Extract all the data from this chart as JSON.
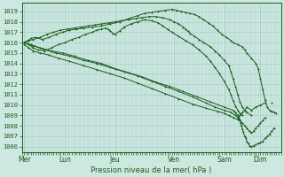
{
  "title": "Pression niveau de la mer( hPa )",
  "bg_color": "#cce8e0",
  "grid_color": "#aacfc8",
  "line_color": "#1a5c1a",
  "ylim": [
    1005.5,
    1019.8
  ],
  "yticks": [
    1006,
    1007,
    1008,
    1009,
    1010,
    1011,
    1012,
    1013,
    1014,
    1015,
    1016,
    1017,
    1018,
    1019
  ],
  "day_labels": [
    "Mer",
    "Lun",
    "Jeu",
    "Ven",
    "Sam",
    "Dim"
  ],
  "day_positions": [
    0.0,
    0.9,
    2.0,
    3.3,
    4.4,
    5.2
  ],
  "xlim": [
    -0.05,
    5.65
  ],
  "lines": [
    {
      "x": [
        0.0,
        0.08,
        0.15,
        0.25,
        0.4,
        0.55,
        0.7,
        0.85,
        1.0,
        1.15,
        1.3,
        1.5,
        1.7,
        1.9,
        2.1,
        2.3,
        2.5,
        2.65,
        2.8,
        2.95,
        3.1,
        3.25,
        3.35,
        3.45,
        3.55,
        3.65,
        3.75,
        3.85,
        3.95,
        4.05,
        4.15,
        4.25,
        4.35,
        4.45,
        4.55,
        4.6,
        4.7,
        4.8,
        4.85,
        4.9,
        5.0,
        5.1,
        5.15,
        5.2,
        5.25,
        5.3,
        5.35,
        5.4,
        5.45,
        5.5,
        5.55
      ],
      "y": [
        1016.0,
        1016.2,
        1016.4,
        1016.5,
        1016.3,
        1016.5,
        1016.8,
        1017.0,
        1017.2,
        1017.3,
        1017.4,
        1017.5,
        1017.6,
        1017.8,
        1018.0,
        1018.3,
        1018.6,
        1018.8,
        1018.9,
        1019.0,
        1019.1,
        1019.2,
        1019.1,
        1019.0,
        1018.9,
        1018.8,
        1018.7,
        1018.5,
        1018.2,
        1017.9,
        1017.6,
        1017.2,
        1016.8,
        1016.5,
        1016.2,
        1016.0,
        1015.8,
        1015.6,
        1015.3,
        1015.0,
        1014.5,
        1014.0,
        1013.5,
        1012.5,
        1011.5,
        1010.5,
        1009.8,
        1009.5,
        1009.4,
        1009.3,
        1009.2
      ],
      "marker": "+"
    },
    {
      "x": [
        0.0,
        0.1,
        0.2,
        0.35,
        0.5,
        0.65,
        0.8,
        0.95,
        1.1,
        1.25,
        1.4,
        1.55,
        1.7,
        1.85,
        2.0,
        2.15,
        2.3,
        2.45,
        2.6,
        2.75,
        2.9,
        3.05,
        3.2,
        3.3,
        3.4,
        3.5,
        3.55,
        3.6,
        3.65,
        3.75,
        3.85,
        3.95,
        4.1,
        4.2,
        4.3,
        4.4,
        4.5,
        4.55,
        4.6,
        4.65,
        4.7,
        4.75,
        4.8,
        4.85,
        4.9,
        5.0
      ],
      "y": [
        1016.0,
        1016.2,
        1016.3,
        1016.5,
        1016.8,
        1017.0,
        1017.2,
        1017.3,
        1017.4,
        1017.5,
        1017.6,
        1017.7,
        1017.8,
        1017.9,
        1018.0,
        1018.1,
        1018.2,
        1018.3,
        1018.4,
        1018.5,
        1018.5,
        1018.4,
        1018.2,
        1018.0,
        1017.8,
        1017.5,
        1017.3,
        1017.1,
        1016.9,
        1016.6,
        1016.3,
        1016.0,
        1015.6,
        1015.2,
        1014.8,
        1014.3,
        1013.8,
        1013.2,
        1012.5,
        1011.8,
        1011.0,
        1010.3,
        1009.8,
        1009.5,
        1009.3,
        1009.0
      ],
      "marker": "+"
    },
    {
      "x": [
        0.0,
        0.1,
        0.2,
        0.3,
        0.45,
        0.6,
        0.75,
        0.9,
        1.05,
        1.2,
        1.35,
        1.5,
        1.6,
        1.7,
        1.8,
        1.85,
        1.9,
        1.95,
        2.0,
        2.1,
        2.2,
        2.35,
        2.5,
        2.65,
        2.8,
        2.95,
        3.05,
        3.15,
        3.25,
        3.4,
        3.55,
        3.7,
        3.85,
        4.0,
        4.1,
        4.2,
        4.3,
        4.4,
        4.5,
        4.55,
        4.6,
        4.65,
        4.7,
        4.75,
        4.8
      ],
      "y": [
        1016.0,
        1015.8,
        1015.5,
        1015.3,
        1015.2,
        1015.5,
        1015.8,
        1016.0,
        1016.3,
        1016.5,
        1016.8,
        1017.0,
        1017.2,
        1017.3,
        1017.4,
        1017.3,
        1017.1,
        1016.9,
        1016.8,
        1017.1,
        1017.5,
        1017.8,
        1018.0,
        1018.2,
        1018.1,
        1017.9,
        1017.6,
        1017.3,
        1017.0,
        1016.6,
        1016.2,
        1015.8,
        1015.3,
        1014.7,
        1014.2,
        1013.6,
        1013.0,
        1012.3,
        1011.5,
        1011.0,
        1010.4,
        1009.9,
        1009.5,
        1009.2,
        1009.0
      ],
      "marker": "+"
    },
    {
      "x": [
        0.0,
        0.15,
        0.35,
        0.6,
        0.85,
        1.1,
        1.4,
        1.7,
        2.0,
        2.3,
        2.6,
        2.9,
        3.2,
        3.5,
        3.8,
        4.1,
        4.4,
        4.6,
        4.65,
        4.7,
        4.72,
        4.74,
        4.76,
        4.78,
        4.8,
        4.82,
        4.85,
        4.88,
        4.9,
        4.93,
        4.96,
        5.0,
        5.05,
        5.1,
        5.15,
        5.2,
        5.25,
        5.3,
        5.35,
        5.4,
        5.45,
        5.5
      ],
      "y": [
        1016.0,
        1015.8,
        1015.5,
        1015.2,
        1015.0,
        1014.7,
        1014.3,
        1014.0,
        1013.5,
        1013.1,
        1012.7,
        1012.2,
        1011.8,
        1011.3,
        1010.8,
        1010.3,
        1009.8,
        1009.5,
        1009.3,
        1009.0,
        1008.8,
        1008.6,
        1008.3,
        1008.0,
        1007.7,
        1007.4,
        1007.0,
        1006.8,
        1006.5,
        1006.3,
        1006.1,
        1006.0,
        1006.1,
        1006.2,
        1006.3,
        1006.4,
        1006.5,
        1006.8,
        1007.0,
        1007.2,
        1007.5,
        1007.8
      ],
      "marker": "+"
    },
    {
      "x": [
        0.0,
        0.2,
        0.4,
        0.7,
        1.0,
        1.3,
        1.6,
        1.9,
        2.2,
        2.5,
        2.8,
        3.1,
        3.4,
        3.7,
        4.0,
        4.2,
        4.4,
        4.55,
        4.65,
        4.7,
        4.75,
        4.8,
        4.85,
        4.9,
        4.95,
        5.0,
        5.05,
        5.1,
        5.15,
        5.2,
        5.25,
        5.3
      ],
      "y": [
        1016.0,
        1015.7,
        1015.4,
        1015.0,
        1014.7,
        1014.3,
        1014.0,
        1013.6,
        1013.2,
        1012.8,
        1012.3,
        1011.8,
        1011.3,
        1010.8,
        1010.2,
        1009.8,
        1009.5,
        1009.3,
        1009.0,
        1008.8,
        1008.5,
        1008.3,
        1008.0,
        1007.8,
        1007.5,
        1007.3,
        1007.5,
        1007.8,
        1008.0,
        1008.3,
        1008.5,
        1008.8
      ],
      "marker": "+"
    },
    {
      "x": [
        0.0,
        0.1,
        0.2,
        0.35,
        0.55,
        0.75,
        1.0,
        1.3,
        1.6,
        1.9,
        2.2,
        2.5,
        2.8,
        3.1,
        3.4,
        3.7,
        4.0,
        4.25,
        4.4,
        4.5,
        4.6,
        4.7,
        4.75,
        4.8,
        4.85,
        4.9,
        5.0,
        5.1,
        5.2,
        5.3
      ],
      "y": [
        1015.8,
        1015.5,
        1015.2,
        1015.0,
        1014.8,
        1014.5,
        1014.2,
        1013.8,
        1013.4,
        1013.0,
        1012.6,
        1012.1,
        1011.6,
        1011.1,
        1010.6,
        1010.1,
        1009.7,
        1009.4,
        1009.2,
        1009.0,
        1008.8,
        1008.6,
        1009.0,
        1009.3,
        1009.5,
        1009.8,
        1009.5,
        1009.8,
        1010.0,
        1010.2
      ],
      "marker": "+"
    },
    {
      "x": [
        5.45
      ],
      "y": [
        1010.2
      ],
      "marker": "+"
    }
  ]
}
